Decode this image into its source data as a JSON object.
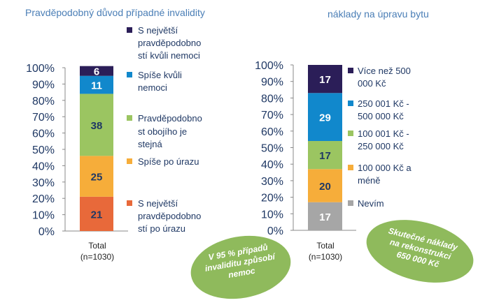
{
  "chart_data": [
    {
      "type": "bar",
      "title": "Pravděpodobný důvod případné invalidity",
      "categories": [
        "Total (n=1030)"
      ],
      "category_lines": [
        "Total",
        "(n=1030)"
      ],
      "ylim": [
        0,
        100
      ],
      "yticks": [
        "0%",
        "10%",
        "20%",
        "30%",
        "40%",
        "50%",
        "60%",
        "70%",
        "80%",
        "90%",
        "100%"
      ],
      "stacked": true,
      "series": [
        {
          "name": "S největší pravděpodobností po úrazu",
          "legend_lines": [
            "S největší",
            "pravděpodobno",
            "stí po úrazu"
          ],
          "values": [
            21
          ],
          "color": "#e8693a"
        },
        {
          "name": "Spíše po úrazu",
          "legend_lines": [
            "Spíše po úrazu"
          ],
          "values": [
            25
          ],
          "color": "#f6ad3a"
        },
        {
          "name": "Pravděpodobnost obojího je stejná",
          "legend_lines": [
            "Pravděpodobno",
            "st obojího je",
            "stejná"
          ],
          "values": [
            38
          ],
          "color": "#9bc561"
        },
        {
          "name": "Spíše kvůli nemoci",
          "legend_lines": [
            "Spíše kvůli",
            "nemoci"
          ],
          "values": [
            11
          ],
          "color": "#1188cc"
        },
        {
          "name": "S největší pravděpodobností kvůli nemoci",
          "legend_lines": [
            "S největší",
            "pravděpodobno",
            "stí kvůli nemoci"
          ],
          "values": [
            6
          ],
          "color": "#2b1e58"
        }
      ],
      "legend_position": "right",
      "grid": false
    },
    {
      "type": "bar",
      "title": "náklady na úpravu bytu",
      "categories": [
        "Total (n=1030)"
      ],
      "category_lines": [
        "Total",
        "(n=1030)"
      ],
      "ylim": [
        0,
        100
      ],
      "yticks": [
        "0%",
        "10%",
        "20%",
        "30%",
        "40%",
        "50%",
        "60%",
        "70%",
        "80%",
        "90%",
        "100%"
      ],
      "stacked": true,
      "series": [
        {
          "name": "Nevím",
          "legend_lines": [
            "Nevím"
          ],
          "values": [
            17
          ],
          "color": "#a6a6a6"
        },
        {
          "name": "100 000 Kč a méně",
          "legend_lines": [
            "100 000 Kč a",
            "méně"
          ],
          "values": [
            20
          ],
          "color": "#f6ad3a"
        },
        {
          "name": "100 001 Kč - 250 000 Kč",
          "legend_lines": [
            "100 001 Kč -",
            "250 000 Kč"
          ],
          "values": [
            17
          ],
          "color": "#9bc561"
        },
        {
          "name": "250 001 Kč - 500 000 Kč",
          "legend_lines": [
            "250 001 Kč -",
            "500 000 Kč"
          ],
          "values": [
            29
          ],
          "color": "#1188cc"
        },
        {
          "name": "Více než 500 000 Kč",
          "legend_lines": [
            "Více než 500",
            "000 Kč"
          ],
          "values": [
            17
          ],
          "color": "#2b1e58"
        }
      ],
      "legend_position": "right",
      "grid": false
    }
  ],
  "annotations": [
    {
      "name": "left-bubble",
      "lines": [
        "V 95 % případů",
        "invaliditu způsobí",
        "nemoc"
      ],
      "color": "#8fba5c"
    },
    {
      "name": "right-bubble",
      "lines": [
        "Skutečné náklady",
        "na rekonstrukci",
        "650 000 Kč"
      ],
      "color": "#8fba5c"
    }
  ]
}
